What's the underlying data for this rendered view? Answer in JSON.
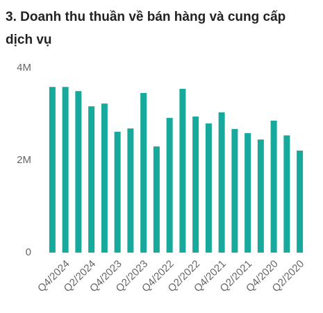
{
  "chart_data": {
    "type": "bar",
    "title": "3. Doanh thu thuần về bán hàng và cung cấp dịch vụ",
    "categories": [
      null,
      "Q4/2024",
      null,
      "Q2/2024",
      null,
      "Q4/2023",
      null,
      "Q2/2023",
      null,
      "Q4/2022",
      null,
      "Q2/2022",
      null,
      "Q4/2021",
      null,
      "Q2/2021",
      null,
      "Q4/2020",
      null,
      "Q2/2020"
    ],
    "values": [
      3590000,
      3590000,
      3500000,
      3170000,
      3230000,
      2620000,
      2690000,
      3460000,
      2300000,
      2920000,
      3550000,
      2950000,
      2800000,
      3040000,
      2680000,
      2590000,
      2450000,
      2860000,
      2540000,
      2210000
    ],
    "color": "#17a99b",
    "ylim": [
      0,
      4000000
    ],
    "yticks": [
      0,
      {
        "value": 2000000,
        "label": "2M"
      },
      {
        "value": 4000000,
        "label": "4M"
      }
    ],
    "grid": false
  }
}
